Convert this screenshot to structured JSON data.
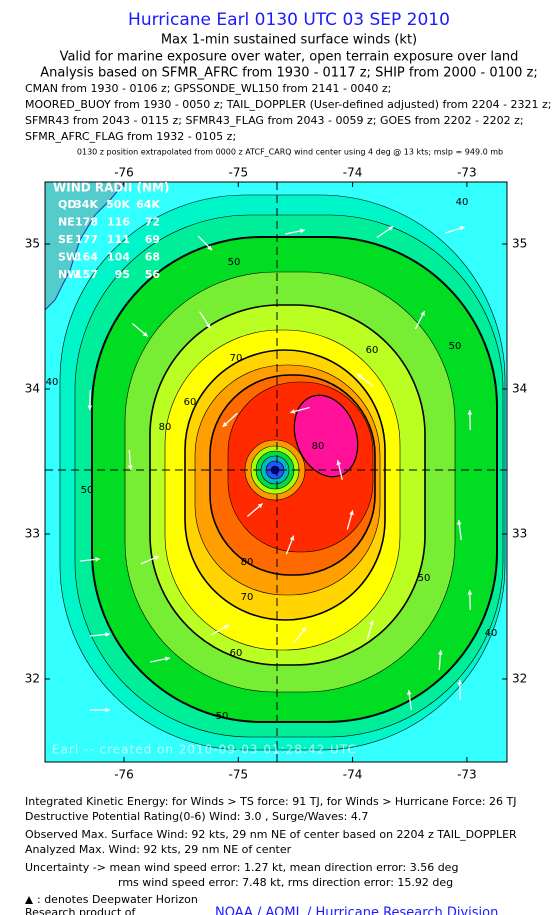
{
  "header": {
    "title": "Hurricane Earl 0130 UTC 03 SEP 2010",
    "lines": [
      "Max 1-min sustained surface winds (kt)",
      "Valid for marine exposure over water, open terrain exposure over land",
      "Analysis based on SFMR_AFRC from 1930 - 0117 z; SHIP from 2000 - 0100 z;",
      "CMAN from 1930 - 0106 z; GPSSONDE_WL150 from 2141 - 0040 z;",
      "MOORED_BUOY from 1930 - 0050 z; TAIL_DOPPLER (User-defined adjusted) from 2204 - 2321 z;",
      "SFMR43 from 2043 - 0115 z; SFMR43_FLAG from 2043 - 0059 z; GOES from 2202 - 2202 z;",
      "SFMR_AFRC_FLAG from 1932 - 0105 z;"
    ],
    "note": "0130 z position extrapolated from 0000 z ATCF_CARQ wind center using 4 deg @ 13 kts;  mslp = 949.0 mb"
  },
  "map": {
    "xticks": [
      -76,
      -75,
      -74,
      -73
    ],
    "yticks": [
      35,
      34,
      33,
      32
    ],
    "contour_labels": [
      40,
      40,
      40,
      50,
      50,
      50,
      50,
      50,
      60,
      60,
      60,
      70,
      70,
      80,
      80,
      80
    ],
    "wind_radii": {
      "title": "WIND RADII (NM)",
      "rows": [
        [
          "QD",
          "34K",
          "50K",
          "64K"
        ],
        [
          "NE",
          "178",
          "116",
          "72"
        ],
        [
          "SE",
          "177",
          "111",
          "69"
        ],
        [
          "SW",
          "164",
          "104",
          "68"
        ],
        [
          "NW",
          "157",
          "95",
          "56"
        ]
      ]
    },
    "watermark": "Earl -- created on 2010-09-03 01:28:42 UTC"
  },
  "footer": {
    "lines": [
      "Integrated Kinetic Energy:  for Winds > TS force: 91 TJ,  for Winds > Hurricane Force: 26 TJ",
      "Destructive Potential Rating(0-6)   Wind: 3.0 , Surge/Waves: 4.7",
      "Observed Max. Surface Wind: 92 kts, 29 nm NE of center based on 2204 z TAIL_DOPPLER",
      "Analyzed Max. Wind: 92 kts, 29 nm NE of center",
      "Uncertainty -> mean wind speed error: 1.27 kt,   mean direction error: 3.56 deg",
      "rms wind speed error: 7.48 kt,   rms direction error: 15.92 deg",
      ": denotes Deepwater Horizon",
      "Research product of"
    ],
    "credit": "NOAA / AOML / Hurricane Research Division"
  }
}
